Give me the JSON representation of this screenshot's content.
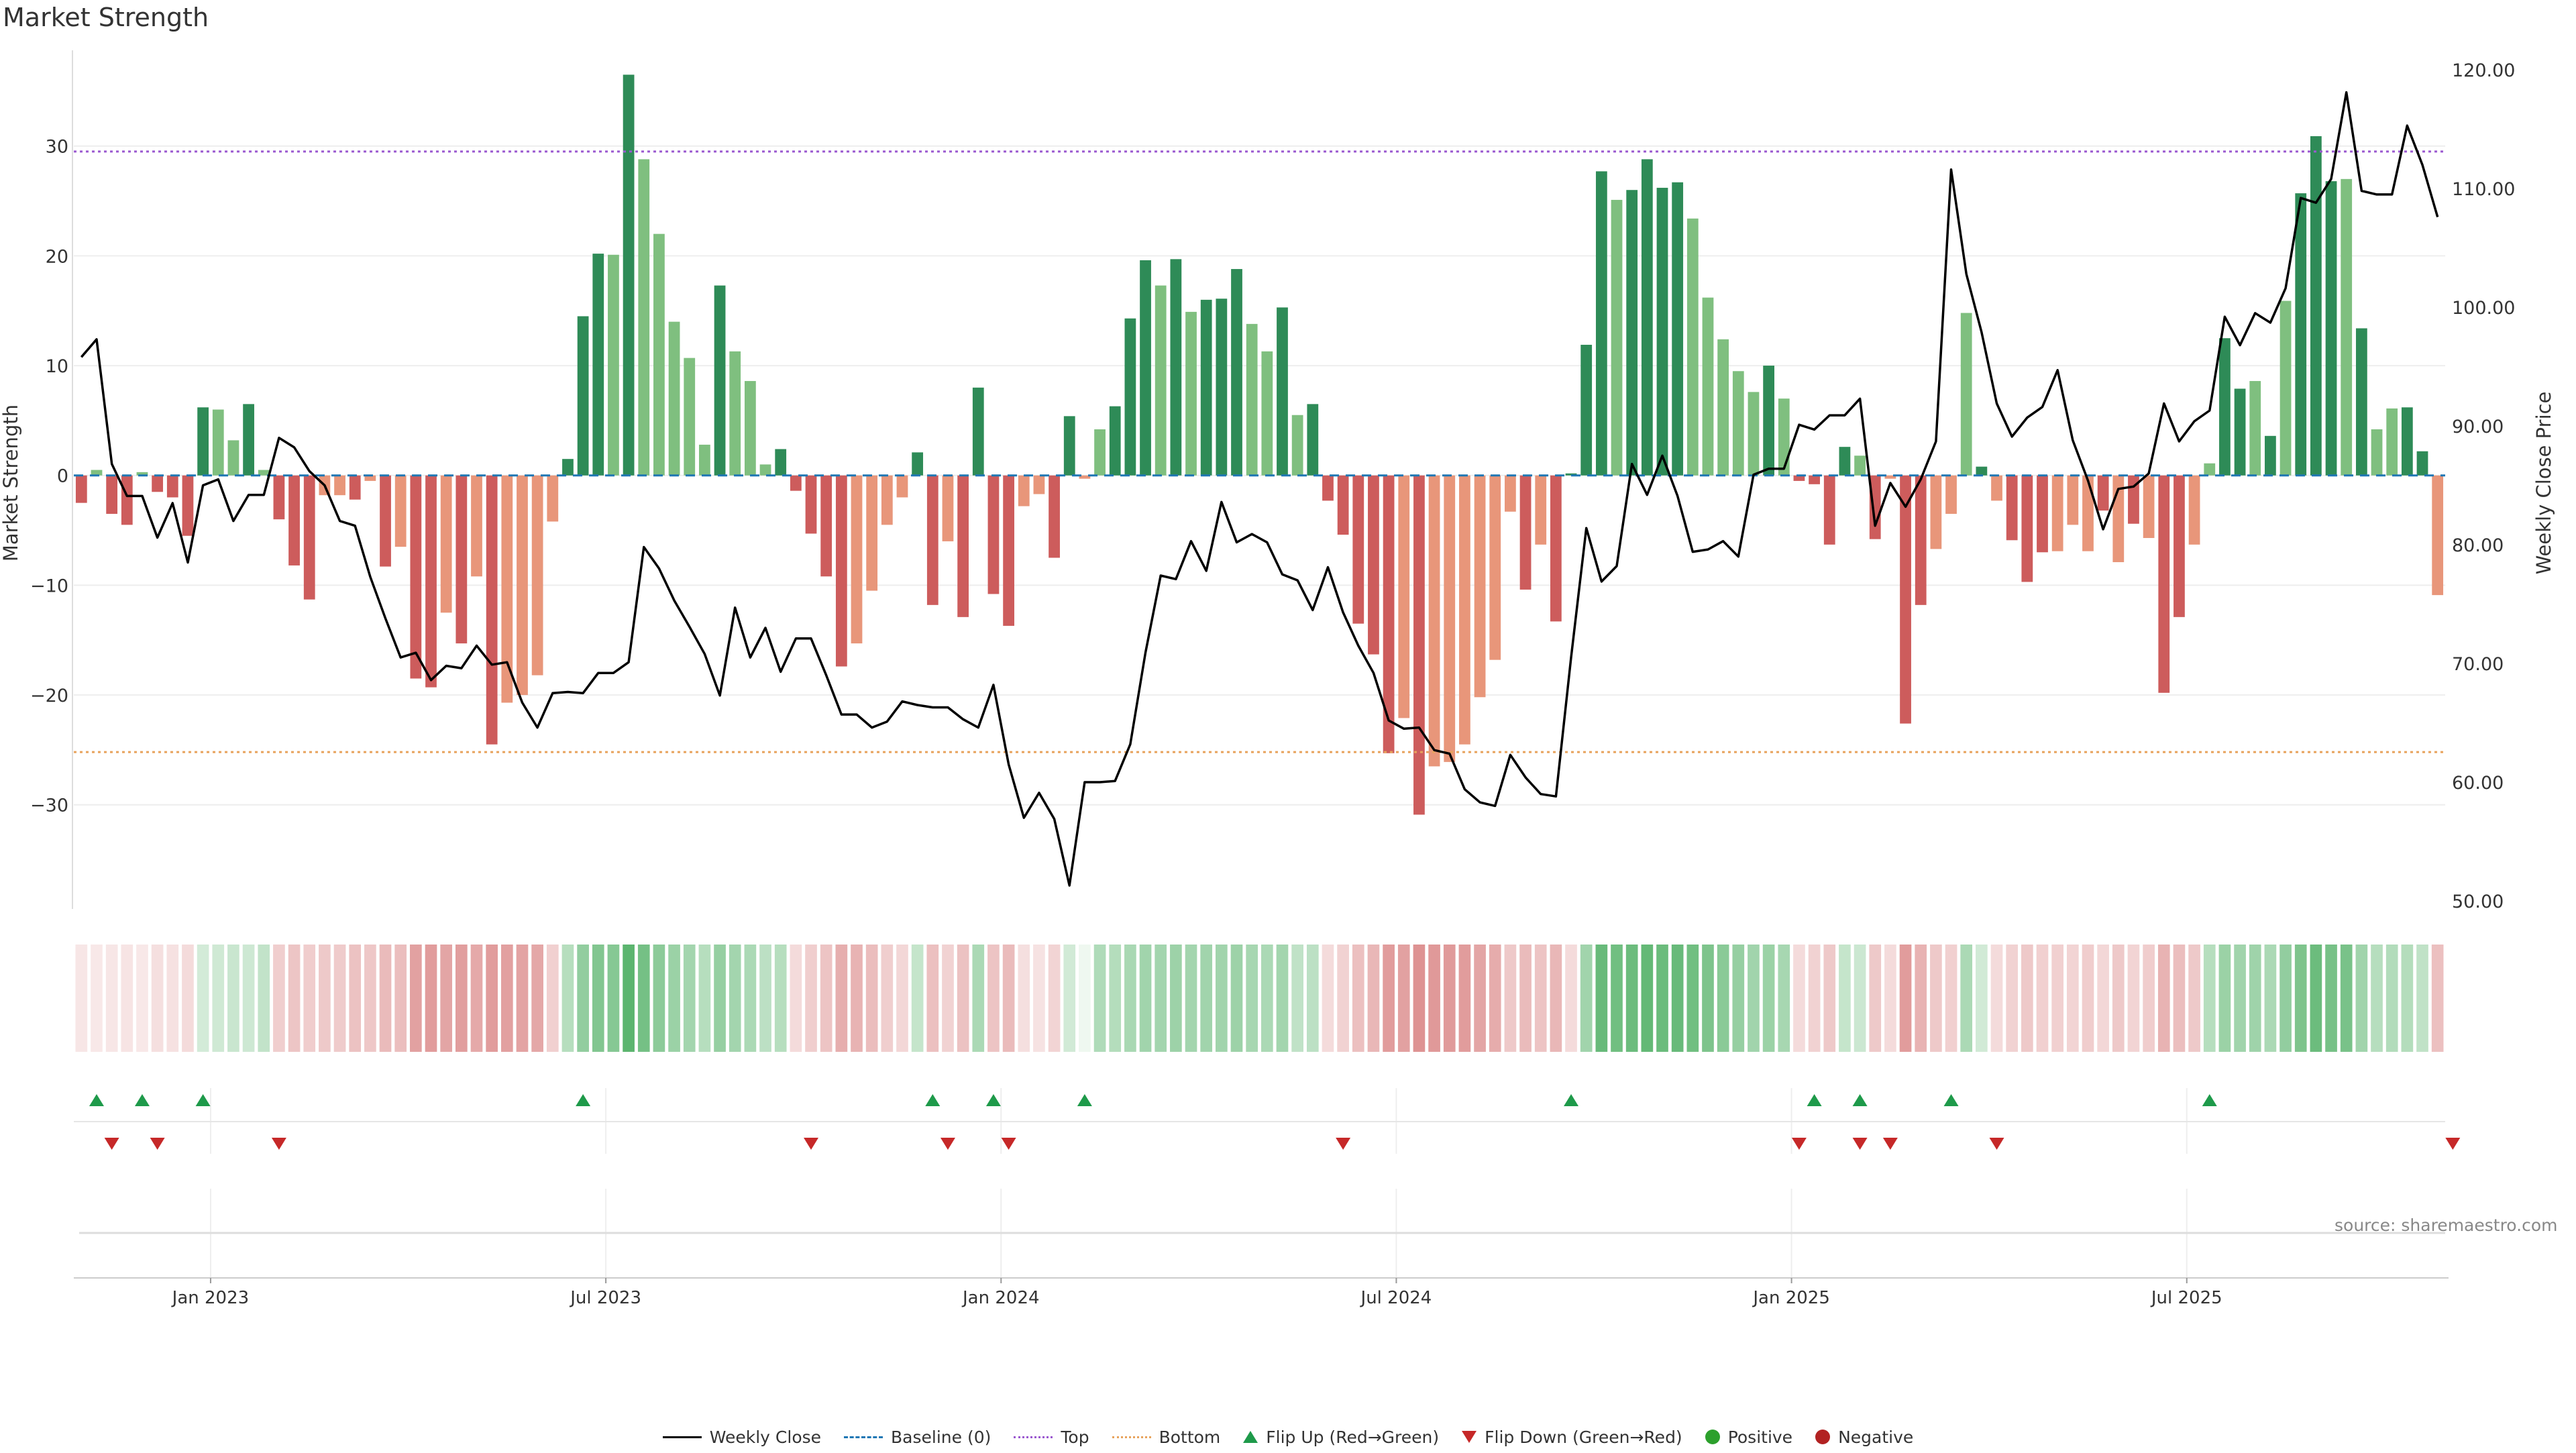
{
  "title": "Market Strength",
  "source_text": "source: sharemaestro.com",
  "colors": {
    "strong_green": "#2e8b57",
    "light_green": "#7fbf7f",
    "strong_red": "#cd5c5c",
    "light_red": "#e8967a",
    "price_line": "#000000",
    "baseline": "#1f77b4",
    "top": "#9b59d0",
    "bottom": "#e8a35c",
    "flip_up": "#1e9a4a",
    "flip_down": "#c62828",
    "positive": "#2ca02c",
    "negative": "#b22222"
  },
  "legend": {
    "weekly_close": "Weekly Close",
    "baseline": "Baseline (0)",
    "top": "Top",
    "bottom": "Bottom",
    "flip_up": "Flip Up (Red→Green)",
    "flip_down": "Flip Down (Green→Red)",
    "positive": "Positive",
    "negative": "Negative"
  },
  "chart_data": {
    "type": "bar",
    "ylabel": "Market Strength",
    "y2label": "Weekly Close Price",
    "ylim": [
      -39,
      37.5
    ],
    "y_ticks": [
      -30,
      -20,
      -10,
      0,
      10,
      20,
      30
    ],
    "y2lim": [
      50,
      120
    ],
    "y2_ticks": [
      "50.00",
      "60.00",
      "70.00",
      "80.00",
      "90.00",
      "100.00",
      "110.00",
      "120.00"
    ],
    "x_ticks": [
      {
        "label": "Jan 2023",
        "week": 9
      },
      {
        "label": "Jul 2023",
        "week": 35
      },
      {
        "label": "Jan 2024",
        "week": 61
      },
      {
        "label": "Jul 2024",
        "week": 87
      },
      {
        "label": "Jan 2025",
        "week": 113
      },
      {
        "label": "Jul 2025",
        "week": 139
      }
    ],
    "top_line": 29.5,
    "bottom_line": -25.2,
    "baseline": 0,
    "strength": [
      -2.5,
      0.5,
      -3.5,
      -4.5,
      0.3,
      -1.5,
      -2,
      -5.5,
      6.2,
      6,
      3.2,
      6.5,
      0.5,
      -4,
      -8.2,
      -11.3,
      -1.8,
      -1.8,
      -2.2,
      -0.5,
      -8.3,
      -6.5,
      -18.5,
      -19.3,
      -12.5,
      -15.3,
      -9.2,
      -24.5,
      -20.7,
      -20,
      -18.2,
      -4.2,
      1.5,
      14.5,
      20.2,
      20.1,
      36.5,
      28.8,
      22,
      14,
      10.7,
      2.8,
      17.3,
      11.3,
      8.6,
      1,
      2.4,
      -1.4,
      -5.3,
      -9.2,
      -17.4,
      -15.3,
      -10.5,
      -4.5,
      -2,
      2.1,
      -11.8,
      -6,
      -12.9,
      8,
      -10.8,
      -13.7,
      -2.8,
      -1.7,
      -7.5,
      5.4,
      -0.3,
      4.2,
      6.3,
      14.3,
      19.6,
      17.3,
      19.7,
      14.9,
      16,
      16.1,
      18.8,
      13.8,
      11.3,
      15.3,
      5.5,
      6.5,
      -2.3,
      -5.4,
      -13.5,
      -16.3,
      -25.3,
      -22.1,
      -30.9,
      -26.5,
      -26.1,
      -24.5,
      -20.2,
      -16.8,
      -3.3,
      -10.4,
      -6.3,
      -13.3,
      0.1,
      11.9,
      27.7,
      25.1,
      26,
      28.8,
      26.2,
      26.7,
      23.4,
      16.2,
      12.4,
      9.5,
      7.6,
      10,
      7,
      -0.5,
      -0.8,
      -6.3,
      2.6,
      1.8,
      -5.8,
      -0.3,
      -22.6,
      -11.8,
      -6.7,
      -3.5,
      14.8,
      0.8,
      -2.3,
      -5.9,
      -9.7,
      -7,
      -6.9,
      -4.5,
      -6.9,
      -3.2,
      -7.9,
      -4.4,
      -5.7,
      -19.8,
      -12.9,
      -6.3,
      1.1,
      12.5,
      7.9,
      8.6,
      3.6,
      15.9,
      25.7,
      30.9,
      26.8,
      27,
      13.4,
      4.2,
      6.1,
      6.2,
      2.2,
      -10.9
    ],
    "bar_shade": [
      "d",
      "l",
      "d",
      "d",
      "l",
      "d",
      "d",
      "d",
      "d",
      "l",
      "l",
      "d",
      "l",
      "d",
      "d",
      "d",
      "l",
      "l",
      "d",
      "l",
      "d",
      "l",
      "d",
      "d",
      "l",
      "d",
      "l",
      "d",
      "l",
      "l",
      "l",
      "l",
      "d",
      "d",
      "d",
      "l",
      "d",
      "l",
      "l",
      "l",
      "l",
      "l",
      "d",
      "l",
      "l",
      "l",
      "d",
      "d",
      "d",
      "d",
      "d",
      "l",
      "l",
      "l",
      "l",
      "d",
      "d",
      "l",
      "d",
      "d",
      "d",
      "d",
      "l",
      "l",
      "d",
      "d",
      "l",
      "l",
      "d",
      "d",
      "d",
      "l",
      "d",
      "l",
      "d",
      "d",
      "d",
      "l",
      "l",
      "d",
      "l",
      "d",
      "d",
      "d",
      "d",
      "d",
      "d",
      "l",
      "d",
      "l",
      "l",
      "l",
      "l",
      "l",
      "l",
      "d",
      "l",
      "d",
      "d",
      "d",
      "d",
      "l",
      "d",
      "d",
      "d",
      "d",
      "l",
      "l",
      "l",
      "l",
      "l",
      "d",
      "l",
      "d",
      "d",
      "d",
      "d",
      "l",
      "d",
      "l",
      "d",
      "d",
      "l",
      "l",
      "l",
      "d",
      "l",
      "d",
      "d",
      "d",
      "l",
      "l",
      "l",
      "d",
      "l",
      "d",
      "l",
      "d",
      "d",
      "l",
      "l",
      "d",
      "d",
      "l",
      "d",
      "l",
      "d",
      "d",
      "d",
      "l",
      "d",
      "l",
      "l",
      "d",
      "d",
      "l",
      "d"
    ],
    "price": [
      95.8,
      97.3,
      86.8,
      84.1,
      84.1,
      80.6,
      83.5,
      78.5,
      85,
      85.5,
      82,
      84.2,
      84.2,
      89,
      88.2,
      86.2,
      85,
      82,
      81.6,
      77.3,
      73.8,
      70.5,
      70.9,
      68.6,
      69.8,
      69.6,
      71.5,
      69.9,
      70.1,
      66.7,
      64.6,
      67.5,
      67.6,
      67.5,
      69.2,
      69.2,
      70.1,
      79.8,
      78,
      75.3,
      73.1,
      70.8,
      67.3,
      74.7,
      70.5,
      73,
      69.3,
      72.1,
      72.1,
      69,
      65.7,
      65.7,
      64.6,
      65.1,
      66.8,
      66.5,
      66.3,
      66.3,
      65.3,
      64.6,
      68.2,
      61.5,
      57,
      59.1,
      56.9,
      51.3,
      60,
      60,
      60.1,
      63.2,
      70.9,
      77.4,
      77.1,
      80.3,
      77.8,
      83.6,
      80.2,
      80.9,
      80.2,
      77.5,
      77,
      74.5,
      78.1,
      74.3,
      71.5,
      69.2,
      65.2,
      64.5,
      64.6,
      62.7,
      62.4,
      59.4,
      58.3,
      58,
      62.3,
      60.4,
      59,
      58.8,
      70.5,
      81.4,
      76.9,
      78.2,
      86.8,
      84.2,
      87.5,
      84.1,
      79.4,
      79.6,
      80.3,
      79,
      85.9,
      86.4,
      86.4,
      90.1,
      89.7,
      90.9,
      90.9,
      92.3,
      81.6,
      85.2,
      83.2,
      85.5,
      88.7,
      111.6,
      102.8,
      97.9,
      91.9,
      89.1,
      90.7,
      91.6,
      94.7,
      88.8,
      85.4,
      81.3,
      84.7,
      84.9,
      86,
      91.9,
      88.7,
      90.4,
      91.3,
      99.2,
      96.8,
      99.5,
      98.7,
      101.6,
      109.2,
      108.8,
      110.8,
      118.1,
      109.8,
      109.5,
      109.5,
      115.3,
      112,
      107.6
    ],
    "flip_up_weeks": [
      1,
      4,
      8,
      33,
      56,
      60,
      66,
      98,
      114,
      117,
      123,
      140
    ],
    "flip_down_weeks": [
      2,
      5,
      13,
      48,
      57,
      61,
      83,
      113,
      117,
      119,
      126,
      156
    ],
    "heat_strips": [
      0.14,
      0.13,
      0.14,
      0.15,
      0.13,
      0.18,
      0.17,
      0.2,
      0.21,
      0.23,
      0.26,
      0.24,
      0.29,
      0.27,
      0.32,
      0.28,
      0.3,
      0.29,
      0.34,
      0.31,
      0.38,
      0.36,
      0.52,
      0.55,
      0.5,
      0.54,
      0.48,
      0.55,
      0.53,
      0.51,
      0.49,
      0.26,
      0.35,
      0.52,
      0.6,
      0.58,
      0.78,
      0.66,
      0.55,
      0.48,
      0.44,
      0.35,
      0.5,
      0.44,
      0.4,
      0.32,
      0.35,
      0.2,
      0.27,
      0.33,
      0.45,
      0.42,
      0.37,
      0.27,
      0.22,
      0.28,
      0.35,
      0.25,
      0.34,
      0.4,
      0.33,
      0.38,
      0.18,
      0.16,
      0.24,
      0.22,
      0,
      0.38,
      0.36,
      0.41,
      0.45,
      0.44,
      0.47,
      0.44,
      0.45,
      0.45,
      0.47,
      0.42,
      0.4,
      0.44,
      0.3,
      0.32,
      0.2,
      0.25,
      0.35,
      0.4,
      0.55,
      0.52,
      0.6,
      0.57,
      0.56,
      0.55,
      0.5,
      0.46,
      0.3,
      0.38,
      0.33,
      0.4,
      0.2,
      0.45,
      0.72,
      0.68,
      0.7,
      0.74,
      0.71,
      0.72,
      0.68,
      0.62,
      0.56,
      0.5,
      0.45,
      0.48,
      0.42,
      0.2,
      0.25,
      0.3,
      0.28,
      0.25,
      0.3,
      0.2,
      0.55,
      0.42,
      0.3,
      0.26,
      0.4,
      0.22,
      0.2,
      0.25,
      0.3,
      0.26,
      0.26,
      0.24,
      0.28,
      0.22,
      0.3,
      0.24,
      0.28,
      0.42,
      0.36,
      0.3,
      0.35,
      0.48,
      0.45,
      0.46,
      0.4,
      0.52,
      0.62,
      0.7,
      0.65,
      0.64,
      0.45,
      0.35,
      0.37,
      0.36,
      0.3,
      0.35
    ],
    "heat_sign": [
      "n",
      "n",
      "n",
      "n",
      "n",
      "n",
      "n",
      "n",
      "p",
      "p",
      "p",
      "p",
      "p",
      "n",
      "n",
      "n",
      "n",
      "n",
      "n",
      "n",
      "n",
      "n",
      "n",
      "n",
      "n",
      "n",
      "n",
      "n",
      "n",
      "n",
      "n",
      "n",
      "p",
      "p",
      "p",
      "p",
      "p",
      "p",
      "p",
      "p",
      "p",
      "p",
      "p",
      "p",
      "p",
      "p",
      "p",
      "n",
      "n",
      "n",
      "n",
      "n",
      "n",
      "n",
      "n",
      "p",
      "n",
      "n",
      "n",
      "p",
      "n",
      "n",
      "n",
      "n",
      "n",
      "p",
      "p",
      "p",
      "p",
      "p",
      "p",
      "p",
      "p",
      "p",
      "p",
      "p",
      "p",
      "p",
      "p",
      "p",
      "p",
      "p",
      "n",
      "n",
      "n",
      "n",
      "n",
      "n",
      "n",
      "n",
      "n",
      "n",
      "n",
      "n",
      "n",
      "n",
      "n",
      "n",
      "n",
      "p",
      "p",
      "p",
      "p",
      "p",
      "p",
      "p",
      "p",
      "p",
      "p",
      "p",
      "p",
      "p",
      "p",
      "n",
      "n",
      "n",
      "p",
      "p",
      "n",
      "n",
      "n",
      "n",
      "n",
      "n",
      "p",
      "p",
      "n",
      "n",
      "n",
      "n",
      "n",
      "n",
      "n",
      "n",
      "n",
      "n",
      "n",
      "n",
      "n",
      "n",
      "p",
      "p",
      "p",
      "p",
      "p",
      "p",
      "p",
      "p",
      "p",
      "p",
      "p",
      "p",
      "p",
      "p",
      "p",
      "n"
    ]
  }
}
